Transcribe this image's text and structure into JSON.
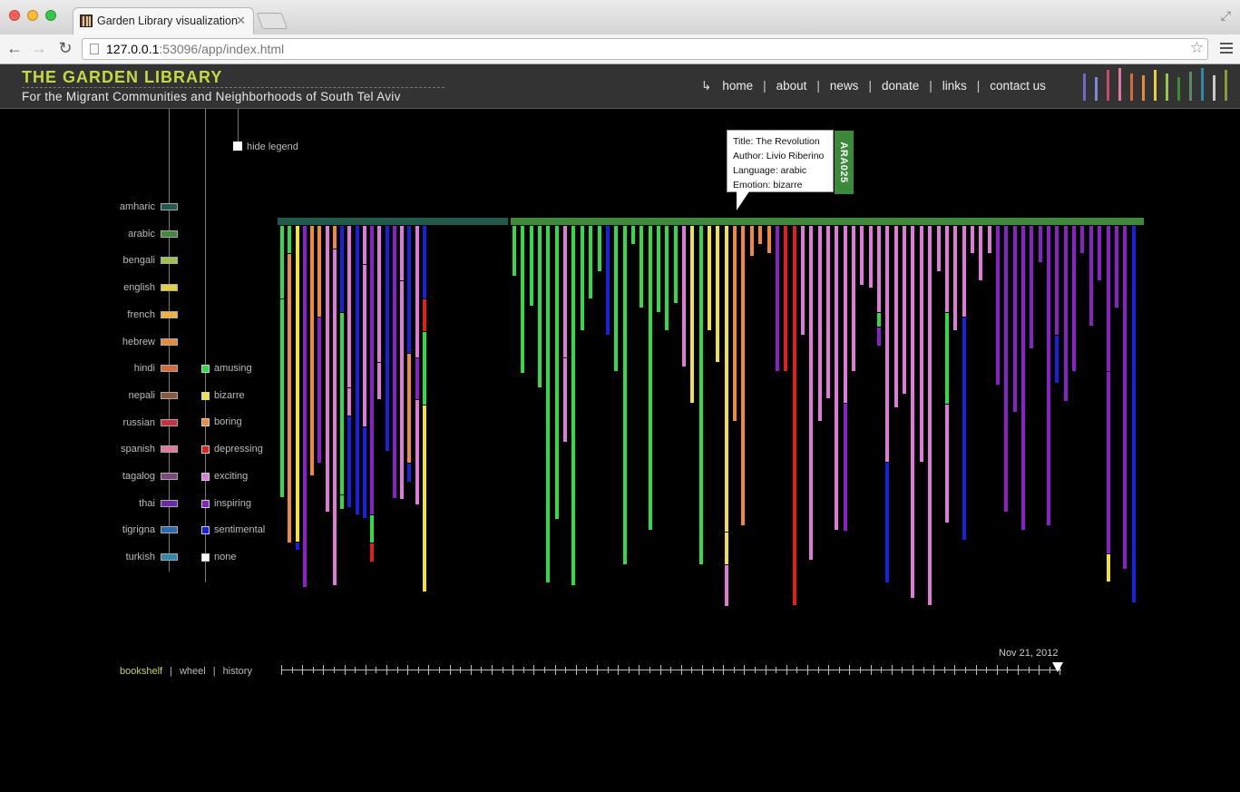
{
  "browser": {
    "tab_title": "Garden Library visualization",
    "url_host": "127.0.0.1",
    "url_rest": ":53096/app/index.html"
  },
  "site": {
    "title": "THE GARDEN LIBRARY",
    "subtitle": "For the Migrant Communities and Neighborhoods of South Tel Aviv",
    "nav": [
      "home",
      "about",
      "news",
      "donate",
      "links",
      "contact us"
    ]
  },
  "legend": {
    "hide_label": "hide legend",
    "languages": [
      {
        "name": "amharic",
        "color": "#1f5a4a"
      },
      {
        "name": "arabic",
        "color": "#3d8a3a"
      },
      {
        "name": "bengali",
        "color": "#9ac44a"
      },
      {
        "name": "english",
        "color": "#e4cf3c"
      },
      {
        "name": "french",
        "color": "#f0b23a"
      },
      {
        "name": "hebrew",
        "color": "#e98a3a"
      },
      {
        "name": "hindi",
        "color": "#d86a3a"
      },
      {
        "name": "nepali",
        "color": "#8a5a3a"
      },
      {
        "name": "russian",
        "color": "#c8303a"
      },
      {
        "name": "spanish",
        "color": "#e07a9a"
      },
      {
        "name": "tagalog",
        "color": "#7a4a7a"
      },
      {
        "name": "thai",
        "color": "#6a2ab0"
      },
      {
        "name": "tigrigna",
        "color": "#2a6ab0"
      },
      {
        "name": "turkish",
        "color": "#2a8ab0"
      }
    ],
    "emotions": [
      {
        "name": "amusing",
        "color": "#2fdc45"
      },
      {
        "name": "bizarre",
        "color": "#f0e040"
      },
      {
        "name": "boring",
        "color": "#f08a3a"
      },
      {
        "name": "depressing",
        "color": "#e02020"
      },
      {
        "name": "exciting",
        "color": "#e07ad8"
      },
      {
        "name": "inspiring",
        "color": "#8a20c8"
      },
      {
        "name": "sentimental",
        "color": "#1a20e0"
      },
      {
        "name": "none",
        "color": "#ffffff"
      }
    ]
  },
  "tooltip": {
    "title": "Title: The Revolution",
    "author": "Author: Livio Riberino",
    "language": "Language: arabic",
    "emotion": "Emotion: bizarre",
    "code": "ARA025"
  },
  "view_tabs": [
    "bookshelf",
    "wheel",
    "history"
  ],
  "active_view": "bookshelf",
  "timeline_date": "Nov 21, 2012",
  "chart_data": {
    "type": "bar",
    "shelves": [
      {
        "language": "amharic",
        "color": "#1f5a4a",
        "books": [
          [
            [
              "amusing",
              80
            ],
            [
              "amusing",
              218
            ],
            [
              "bizarre",
              0
            ]
          ],
          [
            [
              "amusing",
              30
            ],
            [
              "boring",
              318
            ]
          ],
          [
            [
              "bizarre",
              348
            ],
            [
              "sentimental",
              8
            ]
          ],
          [
            [
              "inspiring",
              398
            ]
          ],
          [
            [
              "boring",
              275
            ]
          ],
          [
            [
              "boring",
              100
            ],
            [
              "inspiring",
              160
            ]
          ],
          [
            [
              "exciting",
              315
            ]
          ],
          [
            [
              "boring",
              25
            ],
            [
              "exciting",
              370
            ]
          ],
          [
            [
              "sentimental",
              95
            ],
            [
              "amusing",
              200
            ],
            [
              "amusing",
              15
            ]
          ],
          [
            [
              "exciting",
              178
            ],
            [
              "exciting",
              30
            ],
            [
              "sentimental",
              100
            ]
          ],
          [
            [
              "sentimental",
              318
            ]
          ],
          [
            [
              "exciting",
              42
            ],
            [
              "exciting",
              178
            ],
            [
              "sentimental",
              100
            ]
          ],
          [
            [
              "inspiring",
              318
            ],
            [
              "amusing",
              30
            ],
            [
              "depressing",
              20
            ]
          ],
          [
            [
              "exciting",
              150
            ],
            [
              "exciting",
              40
            ]
          ],
          [
            [
              "sentimental",
              248
            ]
          ],
          [
            [
              "inspiring",
              300
            ]
          ],
          [
            [
              "exciting",
              60
            ],
            [
              "exciting",
              240
            ]
          ],
          [
            [
              "sentimental",
              140
            ],
            [
              "boring",
              120
            ],
            [
              "sentimental",
              20
            ]
          ],
          [
            [
              "exciting",
              145
            ],
            [
              "inspiring",
              45
            ],
            [
              "exciting",
              115
            ]
          ],
          [
            [
              "sentimental",
              80
            ],
            [
              "depressing",
              35
            ],
            [
              "amusing",
              80
            ],
            [
              "bizarre",
              205
            ]
          ]
        ]
      },
      {
        "language": "arabic",
        "color": "#3d8a3a",
        "books": [
          [
            [
              "amusing",
              55
            ]
          ],
          [
            [
              "amusing",
              162
            ]
          ],
          [
            [
              "amusing",
              88
            ]
          ],
          [
            [
              "amusing",
              178
            ]
          ],
          [
            [
              "amusing",
              393
            ]
          ],
          [
            [
              "amusing",
              323
            ]
          ],
          [
            [
              "exciting",
              145
            ],
            [
              "exciting",
              92
            ]
          ],
          [
            [
              "amusing",
              396
            ]
          ],
          [
            [
              "amusing",
              115
            ]
          ],
          [
            [
              "amusing",
              80
            ]
          ],
          [
            [
              "amusing",
              50
            ]
          ],
          [
            [
              "sentimental",
              120
            ]
          ],
          [
            [
              "amusing",
              160
            ]
          ],
          [
            [
              "amusing",
              373
            ]
          ],
          [
            [
              "amusing",
              20
            ]
          ],
          [
            [
              "amusing",
              90
            ]
          ],
          [
            [
              "amusing",
              335
            ]
          ],
          [
            [
              "amusing",
              95
            ]
          ],
          [
            [
              "amusing",
              115
            ]
          ],
          [
            [
              "amusing",
              85
            ]
          ],
          [
            [
              "exciting",
              155
            ]
          ],
          [
            [
              "bizarre",
              195
            ]
          ],
          [
            [
              "amusing",
              373
            ]
          ],
          [
            [
              "bizarre",
              115
            ]
          ],
          [
            [
              "bizarre",
              150
            ]
          ],
          [
            [
              "bizarre",
              337
            ],
            [
              "bizarre",
              35
            ],
            [
              "exciting",
              45
            ]
          ],
          [
            [
              "boring",
              215
            ]
          ],
          [
            [
              "boring",
              330
            ]
          ],
          [
            [
              "boring",
              33
            ]
          ],
          [
            [
              "boring",
              20
            ]
          ],
          [
            [
              "boring",
              30
            ]
          ],
          [
            [
              "inspiring",
              160
            ]
          ],
          [
            [
              "depressing",
              160
            ]
          ],
          [
            [
              "depressing",
              418
            ]
          ],
          [
            [
              "exciting",
              120
            ]
          ],
          [
            [
              "exciting",
              368
            ]
          ],
          [
            [
              "exciting",
              215
            ]
          ],
          [
            [
              "exciting",
              190
            ]
          ],
          [
            [
              "exciting",
              335
            ]
          ],
          [
            [
              "exciting",
              195
            ],
            [
              "inspiring",
              140
            ]
          ],
          [
            [
              "exciting",
              160
            ]
          ],
          [
            [
              "exciting",
              65
            ]
          ],
          [
            [
              "exciting",
              68
            ]
          ],
          [
            [
              "exciting",
              95
            ],
            [
              "amusing",
              15
            ],
            [
              "inspiring",
              20
            ]
          ],
          [
            [
              "exciting",
              260
            ],
            [
              "sentimental",
              132
            ]
          ],
          [
            [
              "exciting",
              200
            ]
          ],
          [
            [
              "exciting",
              185
            ]
          ],
          [
            [
              "exciting",
              410
            ]
          ],
          [
            [
              "exciting",
              260
            ]
          ],
          [
            [
              "exciting",
              418
            ]
          ],
          [
            [
              "exciting",
              50
            ]
          ],
          [
            [
              "exciting",
              95
            ],
            [
              "amusing",
              100
            ],
            [
              "exciting",
              130
            ]
          ],
          [
            [
              "exciting",
              115
            ]
          ],
          [
            [
              "exciting",
              100
            ],
            [
              "sentimental",
              245
            ]
          ],
          [
            [
              "exciting",
              30
            ]
          ],
          [
            [
              "exciting",
              60
            ]
          ],
          [
            [
              "exciting",
              30
            ]
          ],
          [
            [
              "inspiring",
              175
            ]
          ],
          [
            [
              "inspiring",
              315
            ]
          ],
          [
            [
              "inspiring",
              205
            ]
          ],
          [
            [
              "inspiring",
              335
            ]
          ],
          [
            [
              "inspiring",
              135
            ]
          ],
          [
            [
              "inspiring",
              40
            ]
          ],
          [
            [
              "inspiring",
              330
            ]
          ],
          [
            [
              "inspiring",
              120
            ],
            [
              "sentimental",
              52
            ]
          ],
          [
            [
              "inspiring",
              193
            ]
          ],
          [
            [
              "inspiring",
              160
            ]
          ],
          [
            [
              "inspiring",
              30
            ]
          ],
          [
            [
              "inspiring",
              110
            ]
          ],
          [
            [
              "inspiring",
              60
            ]
          ],
          [
            [
              "inspiring",
              160
            ],
            [
              "inspiring",
              200
            ],
            [
              "bizarre",
              30
            ]
          ],
          [
            [
              "inspiring",
              90
            ]
          ],
          [
            [
              "inspiring",
              378
            ]
          ],
          [
            [
              "sentimental",
              415
            ]
          ]
        ]
      }
    ]
  }
}
